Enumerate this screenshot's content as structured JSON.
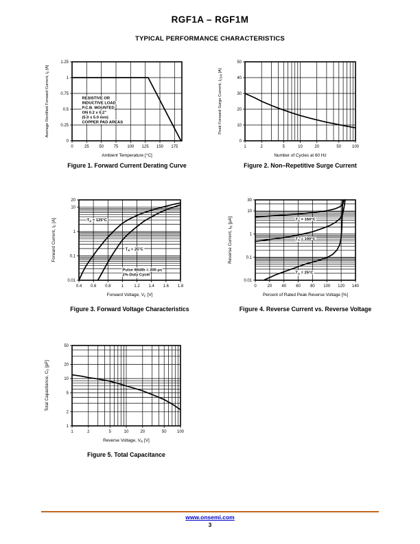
{
  "page": {
    "title": "RGF1A – RGF1M",
    "subtitle": "TYPICAL PERFORMANCE CHARACTERISTICS",
    "footer": {
      "link": "www.onsemi.com",
      "page_number": "3",
      "rule_color": "#c2671d",
      "link_color": "#0000cc"
    }
  },
  "chart_data": [
    {
      "id": "fig1",
      "type": "line",
      "title": "Figure 1. Forward Current Derating Curve",
      "xlabel": "Ambient Temperature [°C]",
      "ylabel": "Average Rectified Forward Current, I~F~ [A]",
      "x_axis": {
        "scale": "linear",
        "min": 0,
        "max": 187.5,
        "ticks": [
          0,
          25,
          50,
          75,
          100,
          125,
          150,
          175
        ],
        "labels": [
          "0",
          "25",
          "50",
          "75",
          "100",
          "125",
          "150",
          "175"
        ]
      },
      "y_axis": {
        "scale": "linear",
        "min": 0,
        "max": 1.25,
        "ticks": [
          0,
          0.25,
          0.5,
          0.75,
          1,
          1.25
        ],
        "labels": [
          "0",
          "0.25",
          "0.5",
          "0.75",
          "1",
          "1.25"
        ]
      },
      "grid": true,
      "legend": "none",
      "series": [
        {
          "name": "derating-curve",
          "points": [
            [
              0,
              1
            ],
            [
              130,
              1
            ],
            [
              186,
              0
            ]
          ]
        }
      ],
      "annotations": [
        {
          "name": "load-note",
          "lines": [
            "RESISTIVE OR",
            "INDUCTIVE LOAD",
            "P.C.B. MOUNTED",
            "ON 0.2 x 0.2\"",
            "(5.0 x 5.0 mm)",
            "COPPER PAD AREAS"
          ],
          "x": 17,
          "y": 0.66
        }
      ]
    },
    {
      "id": "fig2",
      "type": "line",
      "title": "Figure 2. Non–Repetitive Surge Current",
      "xlabel": "Number of Cycles at 60 Hz",
      "ylabel": "Peak Forward Surge Current, I~FSM~ [A]",
      "x_axis": {
        "scale": "log",
        "min": 1,
        "max": 100,
        "ticks": [
          1,
          2,
          5,
          10,
          20,
          50,
          100
        ],
        "labels": [
          "1",
          "2",
          "5",
          "10",
          "20",
          "50",
          "100"
        ]
      },
      "y_axis": {
        "scale": "linear",
        "min": 0,
        "max": 50,
        "ticks": [
          0,
          10,
          20,
          30,
          40,
          50
        ],
        "labels": [
          "0",
          "10",
          "20",
          "30",
          "40",
          "50"
        ]
      },
      "grid": true,
      "legend": "none",
      "series": [
        {
          "name": "surge-current",
          "points": [
            [
              1,
              30
            ],
            [
              1.5,
              27.2
            ],
            [
              2,
              25
            ],
            [
              3,
              22.4
            ],
            [
              4,
              20.7
            ],
            [
              5,
              19.5
            ],
            [
              7,
              17.7
            ],
            [
              10,
              16
            ],
            [
              15,
              14.3
            ],
            [
              20,
              13.2
            ],
            [
              30,
              11.8
            ],
            [
              50,
              10.2
            ],
            [
              70,
              9.2
            ],
            [
              100,
              8.2
            ]
          ]
        }
      ],
      "annotations": []
    },
    {
      "id": "fig3",
      "type": "line",
      "title": "Figure 3. Forward Voltage Characteristics",
      "xlabel": "Forward Voltage, V~F~ [V]",
      "ylabel": "Forward Current, I~F~ [A]",
      "x_axis": {
        "scale": "linear",
        "min": 0.4,
        "max": 1.8,
        "ticks": [
          0.4,
          0.6,
          0.8,
          1,
          1.2,
          1.4,
          1.6,
          1.8
        ],
        "labels": [
          "0.4",
          "0.6",
          "0.8",
          "1",
          "1.2",
          "1.4",
          "1.6",
          "1.8"
        ]
      },
      "y_axis": {
        "scale": "log",
        "min": 0.01,
        "max": 20,
        "ticks": [
          0.01,
          0.1,
          1,
          10,
          20
        ],
        "labels": [
          "0.01",
          "0.1",
          "1",
          "10",
          "20"
        ]
      },
      "grid": true,
      "legend": "none",
      "series": [
        {
          "name": "ta-125c",
          "points": [
            [
              0.4,
              0.01
            ],
            [
              0.45,
              0.021
            ],
            [
              0.5,
              0.04
            ],
            [
              0.55,
              0.066
            ],
            [
              0.6,
              0.105
            ],
            [
              0.65,
              0.17
            ],
            [
              0.7,
              0.26
            ],
            [
              0.75,
              0.4
            ],
            [
              0.8,
              0.6
            ],
            [
              0.85,
              0.85
            ],
            [
              0.9,
              1.2
            ],
            [
              1,
              2.2
            ],
            [
              1.1,
              3.3
            ],
            [
              1.2,
              4.6
            ],
            [
              1.3,
              6
            ],
            [
              1.4,
              7.5
            ],
            [
              1.5,
              9.2
            ],
            [
              1.6,
              11
            ],
            [
              1.7,
              13
            ],
            [
              1.8,
              15
            ]
          ]
        },
        {
          "name": "ta-25c",
          "points": [
            [
              0.66,
              0.01
            ],
            [
              0.7,
              0.016
            ],
            [
              0.75,
              0.03
            ],
            [
              0.8,
              0.055
            ],
            [
              0.85,
              0.1
            ],
            [
              0.9,
              0.17
            ],
            [
              0.95,
              0.28
            ],
            [
              1,
              0.45
            ],
            [
              1.05,
              0.65
            ],
            [
              1.1,
              0.9
            ],
            [
              1.15,
              1.2
            ],
            [
              1.2,
              1.6
            ],
            [
              1.3,
              2.7
            ],
            [
              1.4,
              4
            ],
            [
              1.5,
              5.8
            ],
            [
              1.6,
              7.8
            ],
            [
              1.7,
              10
            ],
            [
              1.8,
              12.5
            ]
          ]
        }
      ],
      "annotations": [
        {
          "name": "label-125c",
          "lines": [
            "T~A~ = 125°C"
          ],
          "x": 0.51,
          "y": 2.7
        },
        {
          "name": "label-25c",
          "lines": [
            "T~A~ = 25°C"
          ],
          "x": 1.04,
          "y": 0.17
        },
        {
          "name": "pulse-note",
          "lines": [
            "Pulse Width = 300 μs",
            "2% Duty Cycle"
          ],
          "x": 1.0,
          "y": 0.024
        }
      ]
    },
    {
      "id": "fig4",
      "type": "line",
      "title": "Figure 4. Reverse Current vs. Reverse Voltage",
      "xlabel": "Percent of Rated Peak Reverse Voltage [%]",
      "ylabel": "Reverse Current, I~R~ [μA]",
      "x_axis": {
        "scale": "linear",
        "min": 0,
        "max": 140,
        "ticks": [
          0,
          20,
          40,
          60,
          80,
          100,
          120,
          140
        ],
        "labels": [
          "0",
          "20",
          "40",
          "60",
          "80",
          "100",
          "120",
          "140"
        ]
      },
      "y_axis": {
        "scale": "log",
        "min": 0.01,
        "max": 30,
        "ticks": [
          0.01,
          0.1,
          1,
          10,
          30
        ],
        "labels": [
          "0.01",
          "0.1",
          "1",
          "10",
          "30"
        ]
      },
      "grid": true,
      "legend": "none",
      "series": [
        {
          "name": "ta-150c",
          "points": [
            [
              0,
              5.5
            ],
            [
              20,
              6
            ],
            [
              40,
              6.6
            ],
            [
              60,
              7.3
            ],
            [
              80,
              8.4
            ],
            [
              95,
              9.6
            ],
            [
              105,
              11
            ],
            [
              112,
              12.5
            ],
            [
              118,
              15
            ],
            [
              122,
              19
            ],
            [
              124,
              30
            ]
          ]
        },
        {
          "name": "ta-100c",
          "points": [
            [
              0,
              0.48
            ],
            [
              20,
              0.58
            ],
            [
              40,
              0.7
            ],
            [
              60,
              0.9
            ],
            [
              80,
              1.25
            ],
            [
              95,
              1.8
            ],
            [
              105,
              2.4
            ],
            [
              112,
              3.2
            ],
            [
              118,
              4.5
            ],
            [
              122,
              7
            ],
            [
              124,
              14
            ],
            [
              125.5,
              30
            ]
          ]
        },
        {
          "name": "ta-25c",
          "points": [
            [
              13,
              0.0105
            ],
            [
              30,
              0.018
            ],
            [
              50,
              0.03
            ],
            [
              70,
              0.05
            ],
            [
              90,
              0.075
            ],
            [
              100,
              0.095
            ],
            [
              108,
              0.13
            ],
            [
              114,
              0.2
            ],
            [
              118,
              0.35
            ],
            [
              120,
              0.7
            ],
            [
              121,
              2
            ],
            [
              122,
              30
            ]
          ]
        }
      ],
      "annotations": [
        {
          "name": "label-150c",
          "lines": [
            "T~A~ = 150°C"
          ],
          "x": 56,
          "y": 3.9
        },
        {
          "name": "label-100c",
          "lines": [
            "T~A~ = 100°C"
          ],
          "x": 56,
          "y": 0.55
        },
        {
          "name": "label-25c",
          "lines": [
            "T~A~ = 25°C"
          ],
          "x": 56,
          "y": 0.019
        }
      ]
    },
    {
      "id": "fig5",
      "type": "line",
      "title": "Figure 5. Total Capacitance",
      "xlabel": "Reverse Voltage, V~R~ [V]",
      "ylabel": "Total Capacitance, C~T~ [pF]",
      "x_axis": {
        "scale": "log",
        "min": 1,
        "max": 100,
        "ticks": [
          1,
          2,
          5,
          10,
          20,
          50,
          100
        ],
        "labels": [
          "1",
          "2",
          "5",
          "10",
          "20",
          "50",
          "100"
        ]
      },
      "y_axis": {
        "scale": "log",
        "min": 1,
        "max": 50,
        "ticks": [
          1,
          2,
          5,
          10,
          20,
          50
        ],
        "labels": [
          "1",
          "2",
          "5",
          "10",
          "20",
          "50"
        ]
      },
      "grid": true,
      "legend": "none",
      "series": [
        {
          "name": "capacitance",
          "points": [
            [
              1,
              12
            ],
            [
              1.5,
              11.2
            ],
            [
              2,
              10.5
            ],
            [
              3,
              9.8
            ],
            [
              5,
              8.8
            ],
            [
              7,
              7.9
            ],
            [
              10,
              7
            ],
            [
              15,
              6.1
            ],
            [
              20,
              5.5
            ],
            [
              30,
              4.6
            ],
            [
              50,
              3.6
            ],
            [
              70,
              2.9
            ],
            [
              100,
              2.2
            ]
          ]
        }
      ],
      "annotations": []
    }
  ]
}
